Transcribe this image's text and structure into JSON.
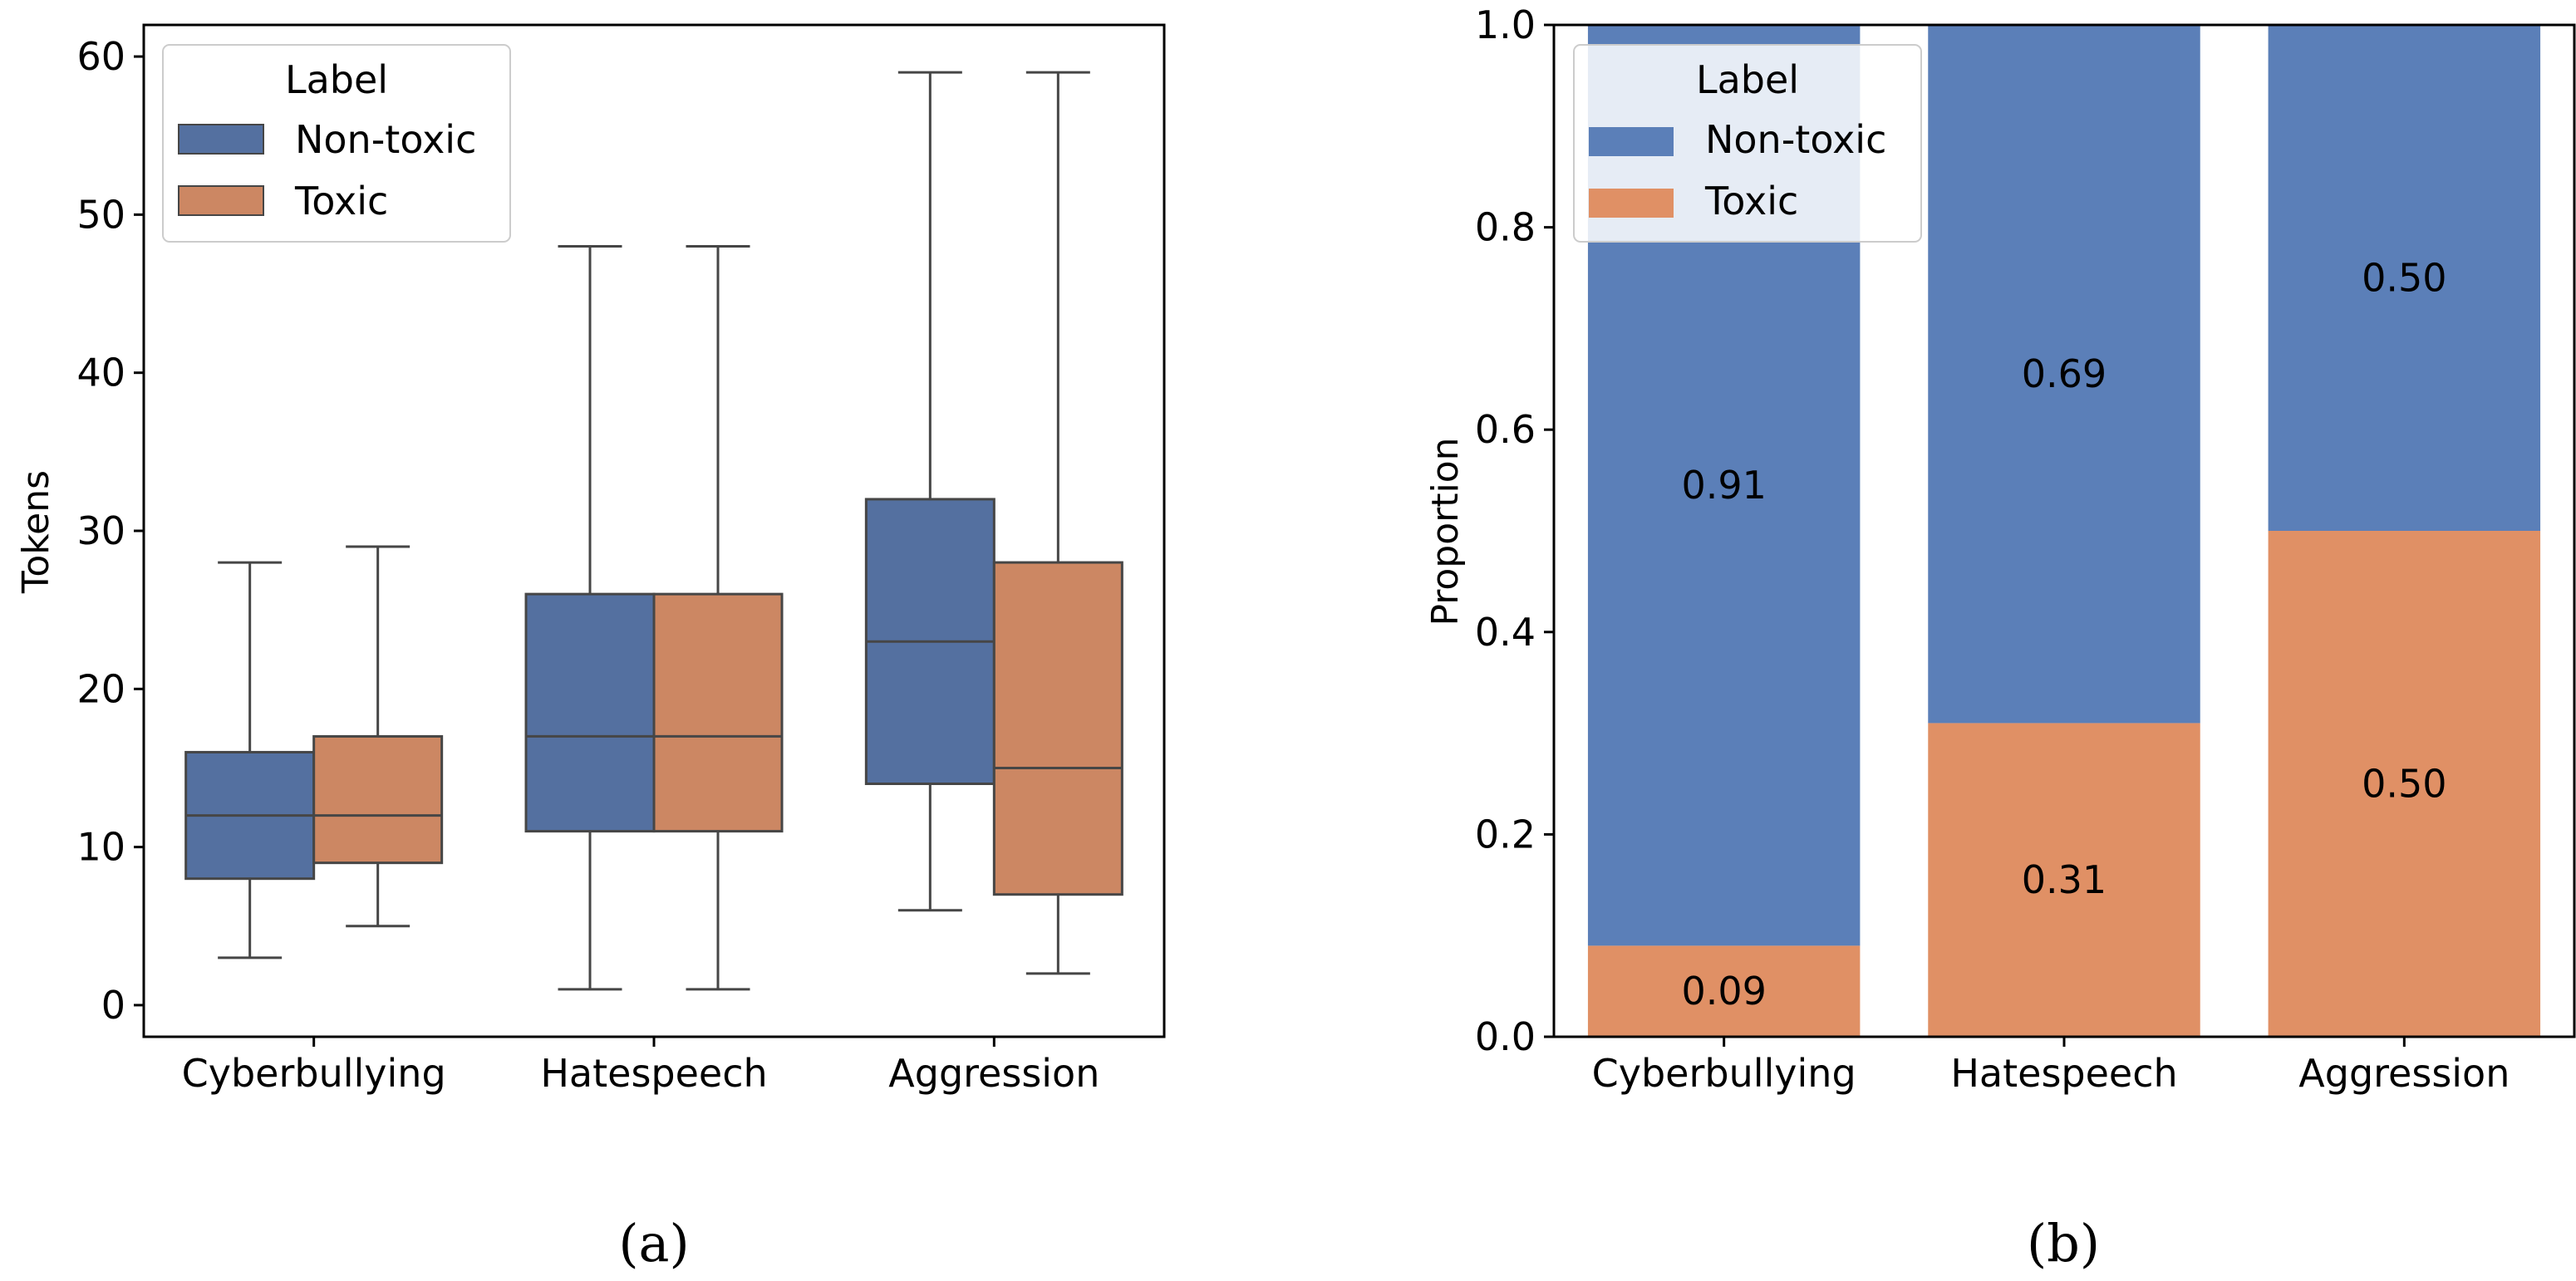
{
  "chart_data": [
    {
      "type": "boxplot",
      "ylabel": "Tokens",
      "ylim": [
        -2,
        62
      ],
      "yticks": [
        "0",
        "10",
        "20",
        "30",
        "40",
        "50",
        "60"
      ],
      "categories": [
        "Cyberbullying",
        "Hatespeech",
        "Aggression"
      ],
      "legend": {
        "title": "Label",
        "position": "top-left",
        "entries": [
          "Non-toxic",
          "Toxic"
        ]
      },
      "series": [
        {
          "name": "Non-toxic",
          "color": "#4c72b0",
          "boxes": [
            {
              "whislo": 3,
              "q1": 8,
              "med": 12,
              "q3": 16,
              "whishi": 28
            },
            {
              "whislo": 1,
              "q1": 11,
              "med": 17,
              "q3": 26,
              "whishi": 48
            },
            {
              "whislo": 6,
              "q1": 14,
              "med": 23,
              "q3": 32,
              "whishi": 59
            }
          ]
        },
        {
          "name": "Toxic",
          "color": "#dd8452",
          "boxes": [
            {
              "whislo": 5,
              "q1": 9,
              "med": 12,
              "q3": 17,
              "whishi": 29
            },
            {
              "whislo": 1,
              "q1": 11,
              "med": 17,
              "q3": 26,
              "whishi": 48
            },
            {
              "whislo": 2,
              "q1": 7,
              "med": 15,
              "q3": 28,
              "whishi": 59
            }
          ]
        }
      ],
      "caption": "(a)"
    },
    {
      "type": "stacked_bar",
      "ylabel": "Proportion",
      "ylim": [
        0,
        1
      ],
      "yticks": [
        "0.0",
        "0.2",
        "0.4",
        "0.6",
        "0.8",
        "1.0"
      ],
      "categories": [
        "Cyberbullying",
        "Hatespeech",
        "Aggression"
      ],
      "legend": {
        "title": "Label",
        "position": "top-left",
        "entries": [
          "Non-toxic",
          "Toxic"
        ]
      },
      "series": [
        {
          "name": "Toxic",
          "color": "#dd8452",
          "values": [
            0.09,
            0.31,
            0.5
          ],
          "labels": [
            "0.09",
            "0.31",
            "0.50"
          ]
        },
        {
          "name": "Non-toxic",
          "color": "#4c72b0",
          "values": [
            0.91,
            0.69,
            0.5
          ],
          "labels": [
            "0.91",
            "0.69",
            "0.50"
          ]
        }
      ],
      "caption": "(b)"
    }
  ],
  "colors": {
    "nontoxic_box": "#5470a0",
    "toxic_box": "#cc8763",
    "nontoxic_bar": "#5b7fb8",
    "toxic_bar": "#e09065",
    "line": "#464646"
  }
}
